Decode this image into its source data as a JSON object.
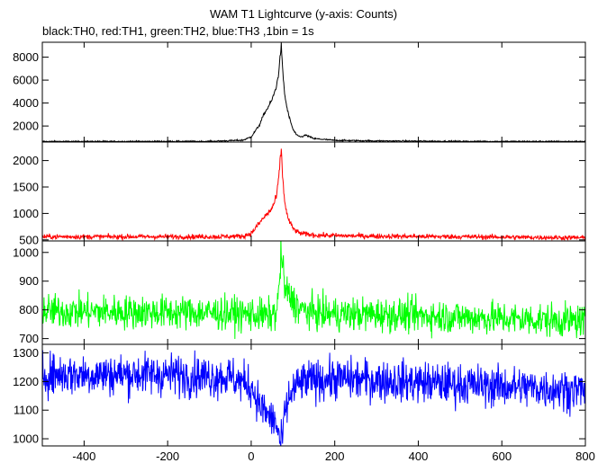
{
  "chart_data": {
    "type": "line",
    "title": "WAM T1 Lightcurve (y-axis: Counts)",
    "subtitle": "black:TH0, red:TH1, green:TH2, blue:TH3 ,1bin = 1s",
    "xlim": [
      -500,
      800
    ],
    "x_ticks": [
      -400,
      -200,
      0,
      200,
      400,
      600,
      800
    ],
    "grid": false,
    "panels": [
      {
        "series": "TH0",
        "color": "#000000",
        "ylim": [
          600,
          9300
        ],
        "y_ticks": [
          2000,
          4000,
          6000,
          8000
        ],
        "x": [
          -500,
          -100,
          -20,
          0,
          20,
          30,
          40,
          50,
          60,
          65,
          70,
          72,
          75,
          80,
          85,
          90,
          100,
          110,
          120,
          130,
          150,
          200,
          300,
          500,
          800
        ],
        "y": [
          650,
          660,
          760,
          1050,
          2100,
          3000,
          3600,
          4300,
          5400,
          6400,
          8300,
          9100,
          7000,
          4800,
          3700,
          2900,
          1700,
          1150,
          1050,
          1200,
          900,
          750,
          700,
          660,
          650
        ]
      },
      {
        "series": "TH1",
        "color": "#ff0000",
        "ylim": [
          480,
          2350
        ],
        "y_ticks": [
          500,
          1000,
          1500,
          2000
        ],
        "x": [
          -500,
          -100,
          -20,
          0,
          20,
          30,
          40,
          50,
          60,
          65,
          70,
          72,
          75,
          80,
          85,
          90,
          100,
          110,
          120,
          130,
          150,
          200,
          300,
          500,
          800
        ],
        "y": [
          560,
          560,
          570,
          620,
          820,
          920,
          1000,
          1100,
          1300,
          1600,
          2050,
          2250,
          1700,
          1250,
          1000,
          870,
          720,
          650,
          620,
          610,
          590,
          580,
          570,
          560,
          540
        ]
      },
      {
        "series": "TH2",
        "color": "#00ff00",
        "ylim": [
          680,
          1040
        ],
        "y_ticks": [
          700,
          800,
          900,
          1000
        ],
        "x": [
          -500,
          -100,
          0,
          40,
          60,
          65,
          70,
          72,
          75,
          80,
          90,
          100,
          120,
          150,
          200,
          300,
          500,
          800
        ],
        "y": [
          795,
          790,
          785,
          778,
          790,
          840,
          960,
          1010,
          950,
          880,
          850,
          830,
          800,
          790,
          785,
          785,
          775,
          760
        ]
      },
      {
        "series": "TH3",
        "color": "#0000ff",
        "ylim": [
          975,
          1330
        ],
        "y_ticks": [
          1000,
          1100,
          1200,
          1300
        ],
        "x": [
          -500,
          -200,
          -50,
          0,
          20,
          40,
          50,
          60,
          65,
          70,
          72,
          75,
          80,
          90,
          100,
          120,
          150,
          200,
          300,
          500,
          800
        ],
        "y": [
          1225,
          1225,
          1215,
          1185,
          1120,
          1080,
          1070,
          1050,
          1020,
          985,
          980,
          1010,
          1080,
          1140,
          1170,
          1195,
          1205,
          1210,
          1205,
          1190,
          1170
        ]
      }
    ]
  }
}
